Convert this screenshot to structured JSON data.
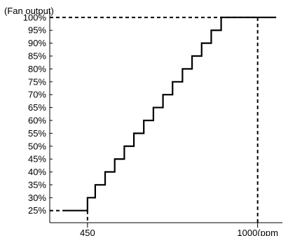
{
  "chart_data": {
    "type": "line",
    "ylabel": "(Fan output)",
    "x_ticks": [
      {
        "value": 450,
        "label": "450"
      },
      {
        "value": 1000,
        "label": "1000(ppm"
      }
    ],
    "y_ticks": [
      {
        "value": 25,
        "label": "25%"
      },
      {
        "value": 30,
        "label": "30%"
      },
      {
        "value": 35,
        "label": "35%"
      },
      {
        "value": 40,
        "label": "40%"
      },
      {
        "value": 45,
        "label": "45%"
      },
      {
        "value": 50,
        "label": "50%"
      },
      {
        "value": 55,
        "label": "55%"
      },
      {
        "value": 60,
        "label": "60%"
      },
      {
        "value": 65,
        "label": "65%"
      },
      {
        "value": 70,
        "label": "70%"
      },
      {
        "value": 75,
        "label": "75%"
      },
      {
        "value": 80,
        "label": "80%"
      },
      {
        "value": 85,
        "label": "85%"
      },
      {
        "value": 90,
        "label": "90%"
      },
      {
        "value": 95,
        "label": "95%"
      },
      {
        "value": 100,
        "label": "100%"
      }
    ],
    "xlim": [
      328,
      1080
    ],
    "ylim": [
      20.3,
      102.4
    ],
    "series": [
      {
        "step": "post",
        "x": [
          370,
          450,
          475,
          507,
          538,
          569,
          600,
          632,
          663,
          694,
          725,
          757,
          788,
          819,
          850,
          882,
          913,
          944,
          975,
          1000,
          1060
        ],
        "y": [
          25,
          30,
          35,
          40,
          45,
          50,
          55,
          60,
          65,
          70,
          75,
          80,
          85,
          90,
          95,
          100,
          100,
          100,
          100,
          100,
          100
        ]
      }
    ],
    "reference_lines": [
      {
        "kind": "vertical",
        "x": 450,
        "from_y": 25
      },
      {
        "kind": "horizontal",
        "y": 25,
        "from_x": 370
      },
      {
        "kind": "vertical",
        "x": 1000,
        "from_y": 100
      },
      {
        "kind": "horizontal",
        "y": 100,
        "from_x": 1000
      }
    ],
    "colors": {
      "line": "#000000",
      "axis": "#000000",
      "text": "#000000"
    }
  }
}
